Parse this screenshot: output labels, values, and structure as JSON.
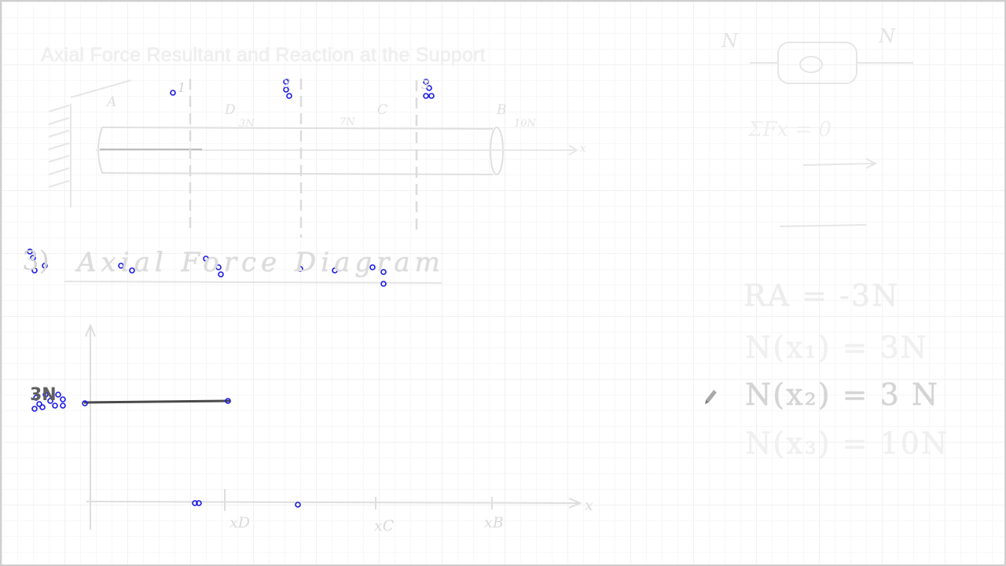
{
  "board": {
    "title": "Axial Force Resultant and Reaction at the Support"
  },
  "beam": {
    "section_labels": [
      "1",
      "2",
      "3"
    ],
    "point_labels": [
      "A",
      "D",
      "C",
      "B"
    ],
    "loads": [
      "3N",
      "7N",
      "10N"
    ],
    "axis_label": "x"
  },
  "diagram": {
    "part_number": "3)",
    "heading": "Axial Force Diagram",
    "force_value": "3N",
    "x_labels": [
      "x",
      "xD",
      "xC",
      "xB"
    ]
  },
  "equations": {
    "n_left": "N",
    "n_right": "N",
    "scribble": "ΣFx = 0",
    "reaction": "RA = -3N",
    "n1": "N(x₁) = 3N",
    "n2": "N(x₂) = 3 N",
    "n3": "N(x₃) = 10N"
  },
  "colors": {
    "grid_major": "#f1f1f1",
    "grid_minor": "#f7f7f7",
    "ink_faint": "#e2e2e2",
    "ink_dark": "#505050",
    "marker": "#1a1ae6"
  },
  "icons": {
    "pen_cursor": "pen-cursor-icon"
  }
}
